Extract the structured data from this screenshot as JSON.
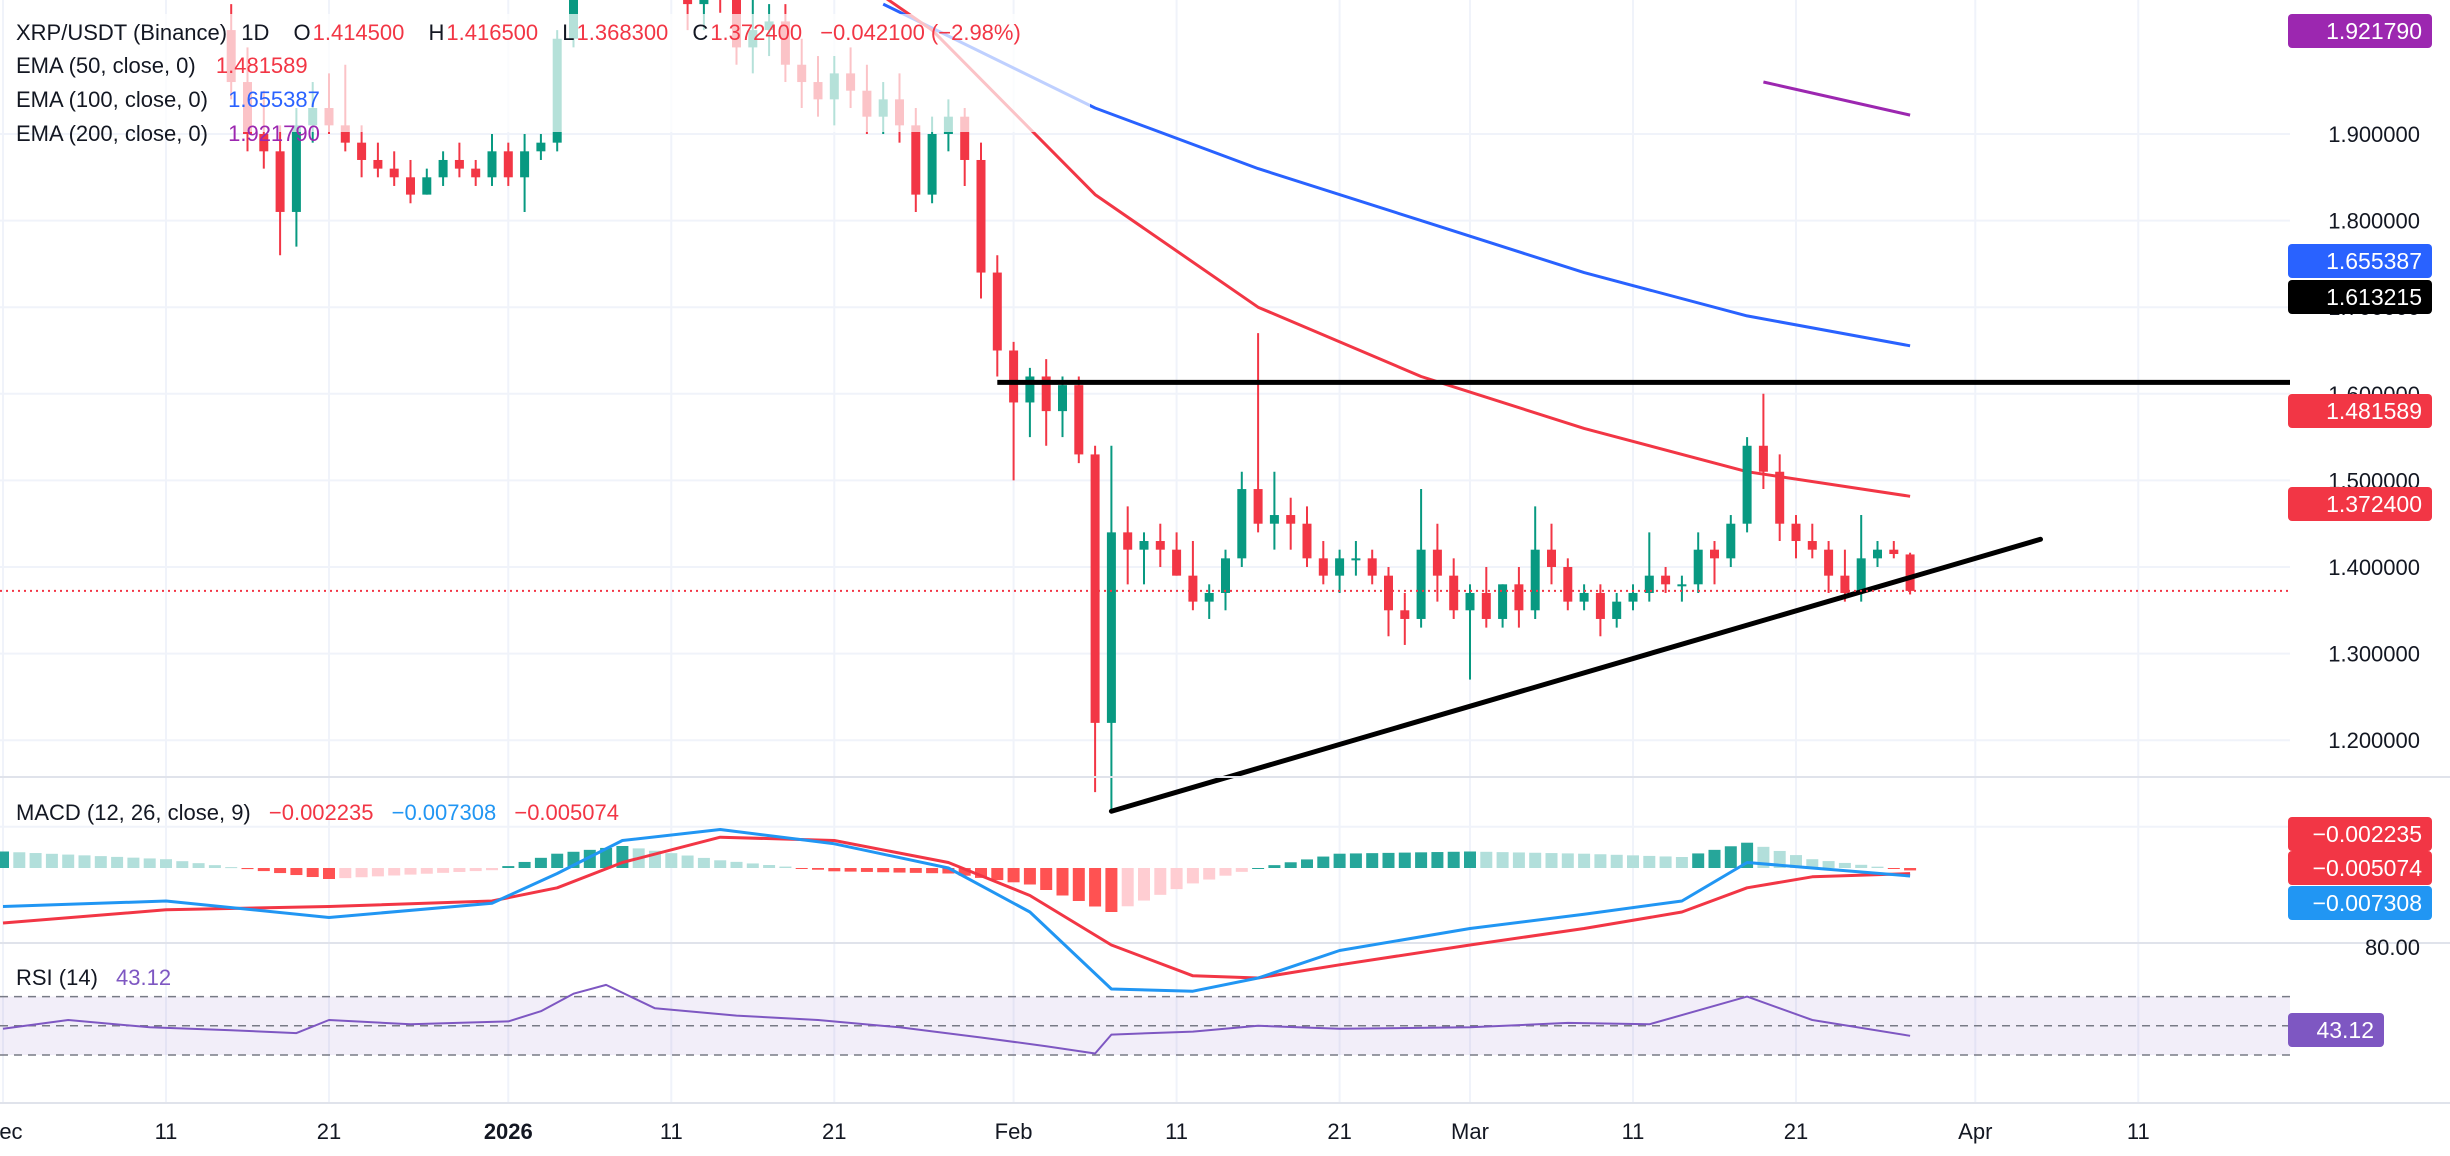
{
  "symbol": "XRP/USDT (Binance)",
  "interval": "1D",
  "ohlc": {
    "o_label": "O",
    "o_value": "1.414500",
    "h_label": "H",
    "h_value": "1.416500",
    "l_label": "L",
    "l_value": "1.368300",
    "c_label": "C",
    "c_value": "1.372400",
    "change": "−0.042100 (−2.98%)"
  },
  "indicators": [
    {
      "label": "EMA (50, close, 0)",
      "value": "1.481589",
      "color": "#f23645"
    },
    {
      "label": "EMA (100, close, 0)",
      "value": "1.655387",
      "color": "#2962ff"
    },
    {
      "label": "EMA (200, close, 0)",
      "value": "1.921790",
      "color": "#9c27b0"
    }
  ],
  "macd_legend": {
    "label": "MACD (12, 26, close, 9)",
    "hist": "−0.002235",
    "macd": "−0.007308",
    "signal": "−0.005074"
  },
  "rsi_legend": {
    "label": "RSI (14)",
    "value": "43.12"
  },
  "price_tags": [
    {
      "text": "1.921790",
      "value": 1.92179,
      "color": "#9c27b0"
    },
    {
      "text": "1.655387",
      "value": 1.655387,
      "color": "#2962ff"
    },
    {
      "text": "1.613215",
      "value": 1.613215,
      "color": "#000000"
    },
    {
      "text": "1.481589",
      "value": 1.481589,
      "color": "#f23645"
    },
    {
      "text": "1.372400",
      "value": 1.3724,
      "color": "#f23645"
    }
  ],
  "macd_tags": [
    {
      "text": "−0.002235",
      "color": "#f23645"
    },
    {
      "text": "−0.005074",
      "color": "#f23645"
    },
    {
      "text": "−0.007308",
      "color": "#2196f3"
    }
  ],
  "rsi_tag": {
    "text": "43.12",
    "color": "#7e57c2"
  },
  "colors": {
    "up": "#089981",
    "down": "#f23645",
    "grid": "#f0f3fa",
    "text": "#131722"
  },
  "chart_data": {
    "type": "candlestick",
    "title": "XRP/USDT (Binance) 1D",
    "price_axis_ticks": [
      "1.900000",
      "1.800000",
      "1.700000",
      "1.600000",
      "1.500000",
      "1.400000",
      "1.300000",
      "1.200000",
      "1.100000"
    ],
    "price_ylim": [
      1.05,
      1.96
    ],
    "time_axis_ticks": [
      "Dec",
      "11",
      "21",
      "2026",
      "11",
      "21",
      "Feb",
      "11",
      "21",
      "Mar",
      "11",
      "21",
      "Apr",
      "11"
    ],
    "rsi_axis_ticks": [
      "80.00"
    ],
    "first_date": "2025-12-01",
    "candles": [
      {
        "date": "2025-12-15",
        "o": 2.02,
        "h": 2.05,
        "l": 1.94,
        "c": 1.96
      },
      {
        "date": "2025-12-16",
        "o": 1.96,
        "h": 2.0,
        "l": 1.88,
        "c": 1.9
      },
      {
        "date": "2025-12-17",
        "o": 1.9,
        "h": 1.95,
        "l": 1.86,
        "c": 1.88
      },
      {
        "date": "2025-12-18",
        "o": 1.88,
        "h": 1.91,
        "l": 1.76,
        "c": 1.81
      },
      {
        "date": "2025-12-19",
        "o": 1.81,
        "h": 1.93,
        "l": 1.77,
        "c": 1.91
      },
      {
        "date": "2025-12-20",
        "o": 1.91,
        "h": 1.96,
        "l": 1.89,
        "c": 1.93
      },
      {
        "date": "2025-12-21",
        "o": 1.93,
        "h": 1.97,
        "l": 1.9,
        "c": 1.91
      },
      {
        "date": "2025-12-22",
        "o": 1.91,
        "h": 1.98,
        "l": 1.88,
        "c": 1.89
      },
      {
        "date": "2025-12-23",
        "o": 1.89,
        "h": 1.91,
        "l": 1.85,
        "c": 1.87
      },
      {
        "date": "2025-12-24",
        "o": 1.87,
        "h": 1.89,
        "l": 1.85,
        "c": 1.86
      },
      {
        "date": "2025-12-25",
        "o": 1.86,
        "h": 1.88,
        "l": 1.84,
        "c": 1.85
      },
      {
        "date": "2025-12-26",
        "o": 1.85,
        "h": 1.87,
        "l": 1.82,
        "c": 1.83
      },
      {
        "date": "2025-12-27",
        "o": 1.83,
        "h": 1.86,
        "l": 1.83,
        "c": 1.85
      },
      {
        "date": "2025-12-28",
        "o": 1.85,
        "h": 1.88,
        "l": 1.84,
        "c": 1.87
      },
      {
        "date": "2025-12-29",
        "o": 1.87,
        "h": 1.89,
        "l": 1.85,
        "c": 1.86
      },
      {
        "date": "2025-12-30",
        "o": 1.86,
        "h": 1.87,
        "l": 1.84,
        "c": 1.85
      },
      {
        "date": "2025-12-31",
        "o": 1.85,
        "h": 1.9,
        "l": 1.84,
        "c": 1.88
      },
      {
        "date": "2026-01-01",
        "o": 1.88,
        "h": 1.89,
        "l": 1.84,
        "c": 1.85
      },
      {
        "date": "2026-01-02",
        "o": 1.85,
        "h": 1.9,
        "l": 1.81,
        "c": 1.88
      },
      {
        "date": "2026-01-03",
        "o": 1.88,
        "h": 1.9,
        "l": 1.87,
        "c": 1.89
      },
      {
        "date": "2026-01-04",
        "o": 1.89,
        "h": 2.02,
        "l": 1.88,
        "c": 2.01
      },
      {
        "date": "2026-01-05",
        "o": 2.01,
        "h": 2.18,
        "l": 2.0,
        "c": 2.12
      },
      {
        "date": "2026-01-06",
        "o": 2.12,
        "h": 2.4,
        "l": 2.1,
        "c": 2.3
      },
      {
        "date": "2026-01-07",
        "o": 2.3,
        "h": 2.42,
        "l": 2.2,
        "c": 2.28
      },
      {
        "date": "2026-01-08",
        "o": 2.28,
        "h": 2.32,
        "l": 2.15,
        "c": 2.2
      },
      {
        "date": "2026-01-09",
        "o": 2.2,
        "h": 2.24,
        "l": 2.08,
        "c": 2.1
      },
      {
        "date": "2026-01-10",
        "o": 2.1,
        "h": 2.15,
        "l": 2.06,
        "c": 2.12
      },
      {
        "date": "2026-01-11",
        "o": 2.12,
        "h": 2.16,
        "l": 2.06,
        "c": 2.08
      },
      {
        "date": "2026-01-12",
        "o": 2.08,
        "h": 2.12,
        "l": 2.02,
        "c": 2.05
      },
      {
        "date": "2026-01-13",
        "o": 2.05,
        "h": 2.14,
        "l": 2.02,
        "c": 2.1
      },
      {
        "date": "2026-01-14",
        "o": 2.1,
        "h": 2.14,
        "l": 2.04,
        "c": 2.06
      },
      {
        "date": "2026-01-15",
        "o": 2.06,
        "h": 2.09,
        "l": 1.98,
        "c": 2.0
      },
      {
        "date": "2026-01-16",
        "o": 2.0,
        "h": 2.06,
        "l": 1.97,
        "c": 2.02
      },
      {
        "date": "2026-01-17",
        "o": 2.02,
        "h": 2.05,
        "l": 1.99,
        "c": 2.03
      },
      {
        "date": "2026-01-18",
        "o": 2.03,
        "h": 2.05,
        "l": 1.96,
        "c": 1.98
      },
      {
        "date": "2026-01-19",
        "o": 1.98,
        "h": 2.01,
        "l": 1.93,
        "c": 1.96
      },
      {
        "date": "2026-01-20",
        "o": 1.96,
        "h": 1.99,
        "l": 1.92,
        "c": 1.94
      },
      {
        "date": "2026-01-21",
        "o": 1.94,
        "h": 1.99,
        "l": 1.91,
        "c": 1.97
      },
      {
        "date": "2026-01-22",
        "o": 1.97,
        "h": 2.0,
        "l": 1.93,
        "c": 1.95
      },
      {
        "date": "2026-01-23",
        "o": 1.95,
        "h": 1.98,
        "l": 1.9,
        "c": 1.92
      },
      {
        "date": "2026-01-24",
        "o": 1.92,
        "h": 1.96,
        "l": 1.9,
        "c": 1.94
      },
      {
        "date": "2026-01-25",
        "o": 1.94,
        "h": 1.97,
        "l": 1.89,
        "c": 1.91
      },
      {
        "date": "2026-01-26",
        "o": 1.91,
        "h": 1.93,
        "l": 1.81,
        "c": 1.83
      },
      {
        "date": "2026-01-27",
        "o": 1.83,
        "h": 1.92,
        "l": 1.82,
        "c": 1.9
      },
      {
        "date": "2026-01-28",
        "o": 1.9,
        "h": 1.94,
        "l": 1.88,
        "c": 1.92
      },
      {
        "date": "2026-01-29",
        "o": 1.92,
        "h": 1.93,
        "l": 1.84,
        "c": 1.87
      },
      {
        "date": "2026-01-30",
        "o": 1.87,
        "h": 1.89,
        "l": 1.71,
        "c": 1.74
      },
      {
        "date": "2026-01-31",
        "o": 1.74,
        "h": 1.76,
        "l": 1.62,
        "c": 1.65
      },
      {
        "date": "2026-02-01",
        "o": 1.65,
        "h": 1.66,
        "l": 1.5,
        "c": 1.59
      },
      {
        "date": "2026-02-02",
        "o": 1.59,
        "h": 1.63,
        "l": 1.55,
        "c": 1.62
      },
      {
        "date": "2026-02-03",
        "o": 1.62,
        "h": 1.64,
        "l": 1.54,
        "c": 1.58
      },
      {
        "date": "2026-02-04",
        "o": 1.58,
        "h": 1.62,
        "l": 1.55,
        "c": 1.61
      },
      {
        "date": "2026-02-05",
        "o": 1.61,
        "h": 1.62,
        "l": 1.52,
        "c": 1.53
      },
      {
        "date": "2026-02-06",
        "o": 1.53,
        "h": 1.54,
        "l": 1.14,
        "c": 1.22
      },
      {
        "date": "2026-02-07",
        "o": 1.22,
        "h": 1.54,
        "l": 1.12,
        "c": 1.44
      },
      {
        "date": "2026-02-08",
        "o": 1.44,
        "h": 1.47,
        "l": 1.38,
        "c": 1.42
      },
      {
        "date": "2026-02-09",
        "o": 1.42,
        "h": 1.44,
        "l": 1.38,
        "c": 1.43
      },
      {
        "date": "2026-02-10",
        "o": 1.43,
        "h": 1.45,
        "l": 1.4,
        "c": 1.42
      },
      {
        "date": "2026-02-11",
        "o": 1.42,
        "h": 1.44,
        "l": 1.39,
        "c": 1.39
      },
      {
        "date": "2026-02-12",
        "o": 1.39,
        "h": 1.43,
        "l": 1.35,
        "c": 1.36
      },
      {
        "date": "2026-02-13",
        "o": 1.36,
        "h": 1.38,
        "l": 1.34,
        "c": 1.37
      },
      {
        "date": "2026-02-14",
        "o": 1.37,
        "h": 1.42,
        "l": 1.35,
        "c": 1.41
      },
      {
        "date": "2026-02-15",
        "o": 1.41,
        "h": 1.51,
        "l": 1.4,
        "c": 1.49
      },
      {
        "date": "2026-02-16",
        "o": 1.49,
        "h": 1.67,
        "l": 1.44,
        "c": 1.45
      },
      {
        "date": "2026-02-17",
        "o": 1.45,
        "h": 1.51,
        "l": 1.42,
        "c": 1.46
      },
      {
        "date": "2026-02-18",
        "o": 1.46,
        "h": 1.48,
        "l": 1.42,
        "c": 1.45
      },
      {
        "date": "2026-02-19",
        "o": 1.45,
        "h": 1.47,
        "l": 1.4,
        "c": 1.41
      },
      {
        "date": "2026-02-20",
        "o": 1.41,
        "h": 1.43,
        "l": 1.38,
        "c": 1.39
      },
      {
        "date": "2026-02-21",
        "o": 1.39,
        "h": 1.42,
        "l": 1.37,
        "c": 1.41
      },
      {
        "date": "2026-02-22",
        "o": 1.41,
        "h": 1.43,
        "l": 1.39,
        "c": 1.41
      },
      {
        "date": "2026-02-23",
        "o": 1.41,
        "h": 1.42,
        "l": 1.38,
        "c": 1.39
      },
      {
        "date": "2026-02-24",
        "o": 1.39,
        "h": 1.4,
        "l": 1.32,
        "c": 1.35
      },
      {
        "date": "2026-02-25",
        "o": 1.35,
        "h": 1.37,
        "l": 1.31,
        "c": 1.34
      },
      {
        "date": "2026-02-26",
        "o": 1.34,
        "h": 1.49,
        "l": 1.33,
        "c": 1.42
      },
      {
        "date": "2026-02-27",
        "o": 1.42,
        "h": 1.45,
        "l": 1.36,
        "c": 1.39
      },
      {
        "date": "2026-02-28",
        "o": 1.39,
        "h": 1.41,
        "l": 1.34,
        "c": 1.35
      },
      {
        "date": "2026-03-01",
        "o": 1.35,
        "h": 1.38,
        "l": 1.27,
        "c": 1.37
      },
      {
        "date": "2026-03-02",
        "o": 1.37,
        "h": 1.4,
        "l": 1.33,
        "c": 1.34
      },
      {
        "date": "2026-03-03",
        "o": 1.34,
        "h": 1.38,
        "l": 1.33,
        "c": 1.38
      },
      {
        "date": "2026-03-04",
        "o": 1.38,
        "h": 1.4,
        "l": 1.33,
        "c": 1.35
      },
      {
        "date": "2026-03-05",
        "o": 1.35,
        "h": 1.47,
        "l": 1.34,
        "c": 1.42
      },
      {
        "date": "2026-03-06",
        "o": 1.42,
        "h": 1.45,
        "l": 1.38,
        "c": 1.4
      },
      {
        "date": "2026-03-07",
        "o": 1.4,
        "h": 1.41,
        "l": 1.35,
        "c": 1.36
      },
      {
        "date": "2026-03-08",
        "o": 1.36,
        "h": 1.38,
        "l": 1.35,
        "c": 1.37
      },
      {
        "date": "2026-03-09",
        "o": 1.37,
        "h": 1.38,
        "l": 1.32,
        "c": 1.34
      },
      {
        "date": "2026-03-10",
        "o": 1.34,
        "h": 1.37,
        "l": 1.33,
        "c": 1.36
      },
      {
        "date": "2026-03-11",
        "o": 1.36,
        "h": 1.38,
        "l": 1.35,
        "c": 1.37
      },
      {
        "date": "2026-03-12",
        "o": 1.37,
        "h": 1.44,
        "l": 1.36,
        "c": 1.39
      },
      {
        "date": "2026-03-13",
        "o": 1.39,
        "h": 1.4,
        "l": 1.37,
        "c": 1.38
      },
      {
        "date": "2026-03-14",
        "o": 1.38,
        "h": 1.39,
        "l": 1.36,
        "c": 1.38
      },
      {
        "date": "2026-03-15",
        "o": 1.38,
        "h": 1.44,
        "l": 1.37,
        "c": 1.42
      },
      {
        "date": "2026-03-16",
        "o": 1.42,
        "h": 1.43,
        "l": 1.38,
        "c": 1.41
      },
      {
        "date": "2026-03-17",
        "o": 1.41,
        "h": 1.46,
        "l": 1.4,
        "c": 1.45
      },
      {
        "date": "2026-03-18",
        "o": 1.45,
        "h": 1.55,
        "l": 1.44,
        "c": 1.54
      },
      {
        "date": "2026-03-19",
        "o": 1.54,
        "h": 1.6,
        "l": 1.49,
        "c": 1.51
      },
      {
        "date": "2026-03-20",
        "o": 1.51,
        "h": 1.53,
        "l": 1.43,
        "c": 1.45
      },
      {
        "date": "2026-03-21",
        "o": 1.45,
        "h": 1.46,
        "l": 1.41,
        "c": 1.43
      },
      {
        "date": "2026-03-22",
        "o": 1.43,
        "h": 1.45,
        "l": 1.41,
        "c": 1.42
      },
      {
        "date": "2026-03-23",
        "o": 1.42,
        "h": 1.43,
        "l": 1.37,
        "c": 1.39
      },
      {
        "date": "2026-03-24",
        "o": 1.39,
        "h": 1.42,
        "l": 1.36,
        "c": 1.37
      },
      {
        "date": "2026-03-25",
        "o": 1.37,
        "h": 1.46,
        "l": 1.36,
        "c": 1.41
      },
      {
        "date": "2026-03-26",
        "o": 1.41,
        "h": 1.43,
        "l": 1.4,
        "c": 1.42
      },
      {
        "date": "2026-03-27",
        "o": 1.42,
        "h": 1.43,
        "l": 1.41,
        "c": 1.415
      },
      {
        "date": "2026-03-28",
        "o": 1.4145,
        "h": 1.4165,
        "l": 1.3683,
        "c": 1.3724
      }
    ],
    "ema50": [
      {
        "date": "2026-01-07",
        "v": 2.3
      },
      {
        "date": "2026-01-17",
        "v": 2.15
      },
      {
        "date": "2026-01-27",
        "v": 2.02
      },
      {
        "date": "2026-02-06",
        "v": 1.83
      },
      {
        "date": "2026-02-16",
        "v": 1.7
      },
      {
        "date": "2026-02-26",
        "v": 1.62
      },
      {
        "date": "2026-03-08",
        "v": 1.56
      },
      {
        "date": "2026-03-18",
        "v": 1.51
      },
      {
        "date": "2026-03-28",
        "v": 1.4816
      }
    ],
    "ema100": [
      {
        "date": "2026-01-24",
        "v": 2.05
      },
      {
        "date": "2026-02-06",
        "v": 1.93
      },
      {
        "date": "2026-02-16",
        "v": 1.86
      },
      {
        "date": "2026-02-26",
        "v": 1.8
      },
      {
        "date": "2026-03-08",
        "v": 1.74
      },
      {
        "date": "2026-03-18",
        "v": 1.69
      },
      {
        "date": "2026-03-28",
        "v": 1.6554
      }
    ],
    "ema200": [
      {
        "date": "2026-03-19",
        "v": 1.96
      },
      {
        "date": "2026-03-28",
        "v": 1.9218
      }
    ],
    "resistance_line": {
      "start_date": "2026-01-31",
      "end_date": "2026-04-30",
      "value": 1.613215
    },
    "support_line": {
      "start": {
        "date": "2026-02-07",
        "v": 1.118
      },
      "end": {
        "date": "2026-04-05",
        "v": 1.432
      }
    },
    "last_price_line": 1.3724,
    "macd": {
      "dates": [
        "2025-12-01",
        "2025-12-11",
        "2025-12-21",
        "2025-12-31",
        "2026-01-04",
        "2026-01-08",
        "2026-01-14",
        "2026-01-21",
        "2026-01-28",
        "2026-02-02",
        "2026-02-07",
        "2026-02-12",
        "2026-02-16",
        "2026-02-21",
        "2026-03-01",
        "2026-03-08",
        "2026-03-14",
        "2026-03-18",
        "2026-03-22",
        "2026-03-28"
      ],
      "macd": [
        -0.035,
        -0.03,
        -0.045,
        -0.032,
        -0.005,
        0.025,
        0.035,
        0.022,
        0.0,
        -0.04,
        -0.11,
        -0.112,
        -0.1,
        -0.075,
        -0.055,
        -0.042,
        -0.03,
        0.005,
        0.0,
        -0.0073
      ],
      "signal": [
        -0.05,
        -0.038,
        -0.035,
        -0.03,
        -0.018,
        0.005,
        0.028,
        0.025,
        0.005,
        -0.025,
        -0.07,
        -0.098,
        -0.1,
        -0.088,
        -0.07,
        -0.055,
        -0.04,
        -0.018,
        -0.008,
        -0.0051
      ],
      "hist_last": -0.002235
    },
    "rsi": {
      "dates": [
        "2025-12-01",
        "2025-12-05",
        "2025-12-10",
        "2025-12-15",
        "2025-12-19",
        "2025-12-21",
        "2025-12-26",
        "2026-01-01",
        "2026-01-03",
        "2026-01-05",
        "2026-01-07",
        "2026-01-10",
        "2026-01-15",
        "2026-01-20",
        "2026-01-25",
        "2026-01-30",
        "2026-02-03",
        "2026-02-06",
        "2026-02-07",
        "2026-02-12",
        "2026-02-16",
        "2026-02-21",
        "2026-03-01",
        "2026-03-07",
        "2026-03-12",
        "2026-03-18",
        "2026-03-22",
        "2026-03-28"
      ],
      "values": [
        48,
        54,
        49,
        47,
        45,
        54,
        51,
        53,
        60,
        72,
        78,
        62,
        57,
        54,
        49,
        42,
        36,
        31,
        44,
        46,
        50,
        48,
        49,
        52,
        51,
        70,
        54,
        43.12
      ]
    }
  }
}
